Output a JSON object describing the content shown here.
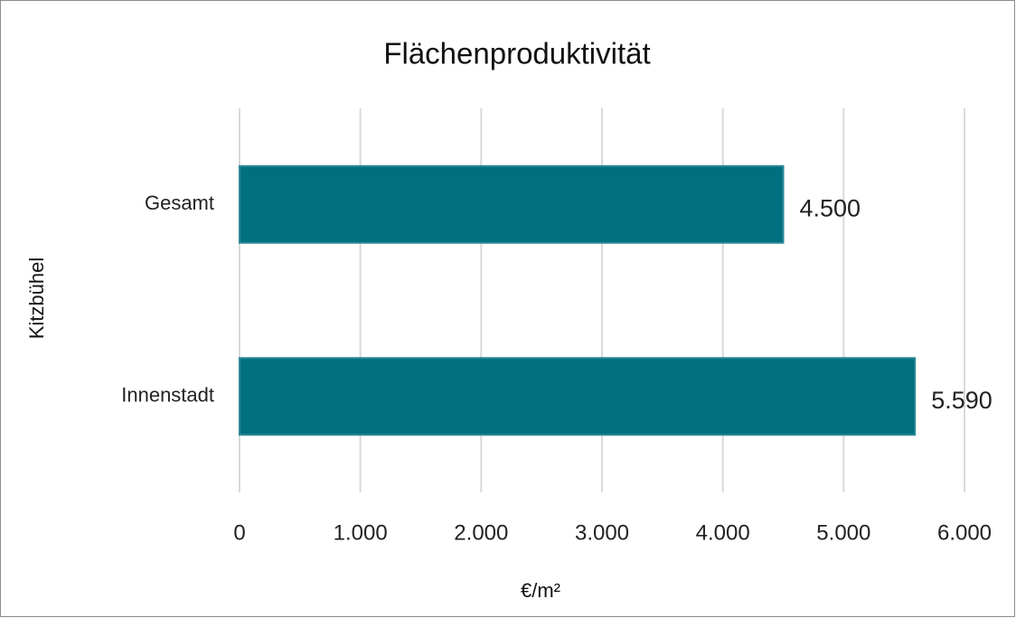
{
  "chart_data": {
    "type": "bar",
    "orientation": "horizontal",
    "title": "Flächenproduktivität",
    "x_label": "€/m²",
    "y_label": "Kitzbühel",
    "categories": [
      "Gesamt",
      "Innenstadt"
    ],
    "values": [
      4500,
      5590
    ],
    "value_labels": [
      "4.500",
      "5.590"
    ],
    "color": "#006f80",
    "xlim": [
      0,
      6000
    ],
    "xticks": [
      0,
      {
        "value": 1000,
        "label": "1.000"
      },
      {
        "value": 2000,
        "label": "2.000"
      },
      {
        "value": 3000,
        "label": "3.000"
      },
      {
        "value": 4000,
        "label": "4.000"
      },
      {
        "value": 5000,
        "label": "5.000"
      },
      {
        "value": 6000,
        "label": "6.000"
      }
    ],
    "grid": true
  }
}
